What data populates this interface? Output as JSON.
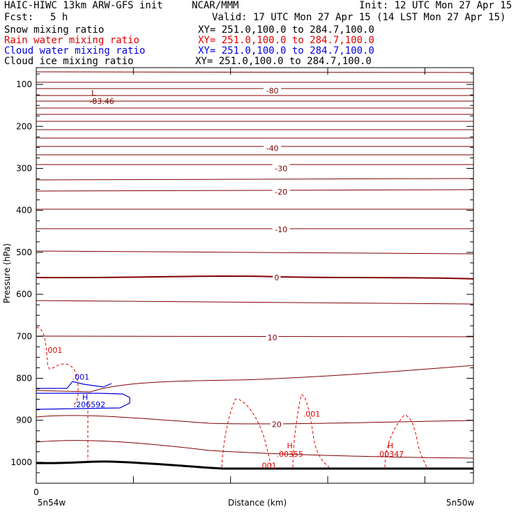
{
  "header": {
    "model": "HAIC-HIWC 13km ARW-GFS init",
    "center": "NCAR/MMM",
    "init": "Init: 12 UTC Mon 27 Apr 15",
    "fcst_label": "Fcst:",
    "fcst_value": "5 h",
    "valid": "Valid: 17 UTC Mon 27 Apr 15 (14 LST Mon 27 Apr 15)"
  },
  "fields": [
    {
      "name": "Snow mixing ratio",
      "xy": "XY= 251.0,100.0 to 284.7,100.0",
      "color": "#000000"
    },
    {
      "name": "Rain water mixing ratio",
      "xy": "XY= 251.0,100.0 to 284.7,100.0",
      "color": "#e00000"
    },
    {
      "name": "Cloud water mixing ratio",
      "xy": "XY= 251.0,100.0 to 284.7,100.0",
      "color": "#0000e0"
    },
    {
      "name": "Cloud ice mixing ratio",
      "xy": "XY= 251.0,100.0 to 284.7,100.0",
      "color": "#000000"
    }
  ],
  "chart_data": {
    "type": "cross-section",
    "ylabel": "Pressure (hPa)",
    "xlabel": "Distance (km)",
    "yticks": [
      100,
      200,
      300,
      400,
      500,
      600,
      700,
      800,
      900,
      1000
    ],
    "ylim": [
      1050,
      60
    ],
    "xticks": [
      "0"
    ],
    "left_endpoint": "5n54w",
    "right_endpoint": "5n50w",
    "temperature_labels": [
      {
        "text": "-80",
        "pressure": 115,
        "fraction": 0.54
      },
      {
        "text": "-40",
        "pressure": 252,
        "fraction": 0.54
      },
      {
        "text": "-30",
        "pressure": 300,
        "fraction": 0.56
      },
      {
        "text": "-20",
        "pressure": 356,
        "fraction": 0.56
      },
      {
        "text": "-10",
        "pressure": 445,
        "fraction": 0.56
      },
      {
        "text": "0",
        "pressure": 560,
        "fraction": 0.55
      },
      {
        "text": "10",
        "pressure": 703,
        "fraction": 0.54
      },
      {
        "text": "20",
        "pressure": 910,
        "fraction": 0.55
      }
    ],
    "low_center": {
      "label": "L",
      "value": "-83.46",
      "pressure": 88,
      "fraction": 0.15
    },
    "rain_labels": [
      {
        "text": ".001",
        "pressure": 733,
        "fraction": 0.04
      },
      {
        "text": ".001",
        "pressure": 885,
        "fraction": 0.63
      },
      {
        "text": ".001",
        "pressure": 1008,
        "fraction": 0.53
      },
      {
        "text": "H",
        "pressure": 960,
        "fraction": 0.58
      },
      {
        "text": ".00355",
        "pressure": 980,
        "fraction": 0.58
      },
      {
        "text": "H",
        "pressure": 960,
        "fraction": 0.81
      },
      {
        "text": ".00347",
        "pressure": 980,
        "fraction": 0.81
      }
    ],
    "cloud_labels": [
      {
        "text": ".001",
        "pressure": 797,
        "fraction": 0.07
      },
      {
        "text": "H",
        "pressure": 845,
        "fraction": 0.08
      },
      {
        "text": ".206592",
        "pressure": 862,
        "fraction": 0.09
      }
    ]
  },
  "colors": {
    "temperature": "#800000",
    "rain": "#e00000",
    "cloud": "#0000e0",
    "axis": "#000000"
  }
}
